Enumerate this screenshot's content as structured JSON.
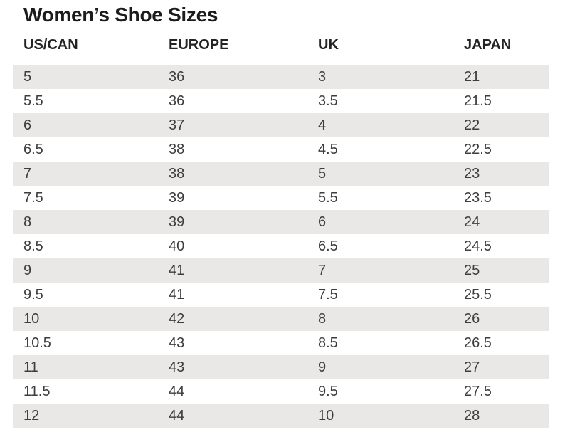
{
  "page": {
    "title": "Women’s Shoe Sizes"
  },
  "table": {
    "columns": [
      "US/CAN",
      "EUROPE",
      "UK",
      "JAPAN"
    ],
    "rows": [
      [
        "5",
        "36",
        "3",
        "21"
      ],
      [
        "5.5",
        "36",
        "3.5",
        "21.5"
      ],
      [
        "6",
        "37",
        "4",
        "22"
      ],
      [
        "6.5",
        "38",
        "4.5",
        "22.5"
      ],
      [
        "7",
        "38",
        "5",
        "23"
      ],
      [
        "7.5",
        "39",
        "5.5",
        "23.5"
      ],
      [
        "8",
        "39",
        "6",
        "24"
      ],
      [
        "8.5",
        "40",
        "6.5",
        "24.5"
      ],
      [
        "9",
        "41",
        "7",
        "25"
      ],
      [
        "9.5",
        "41",
        "7.5",
        "25.5"
      ],
      [
        "10",
        "42",
        "8",
        "26"
      ],
      [
        "10.5",
        "43",
        "8.5",
        "26.5"
      ],
      [
        "11",
        "43",
        "9",
        "27"
      ],
      [
        "11.5",
        "44",
        "9.5",
        "27.5"
      ],
      [
        "12",
        "44",
        "10",
        "28"
      ]
    ],
    "colors": {
      "stripe": "#e9e8e6",
      "body_text": "#3d3d3d",
      "header_text": "#242424",
      "title_text": "#1c1c1c",
      "background": "#ffffff"
    }
  }
}
